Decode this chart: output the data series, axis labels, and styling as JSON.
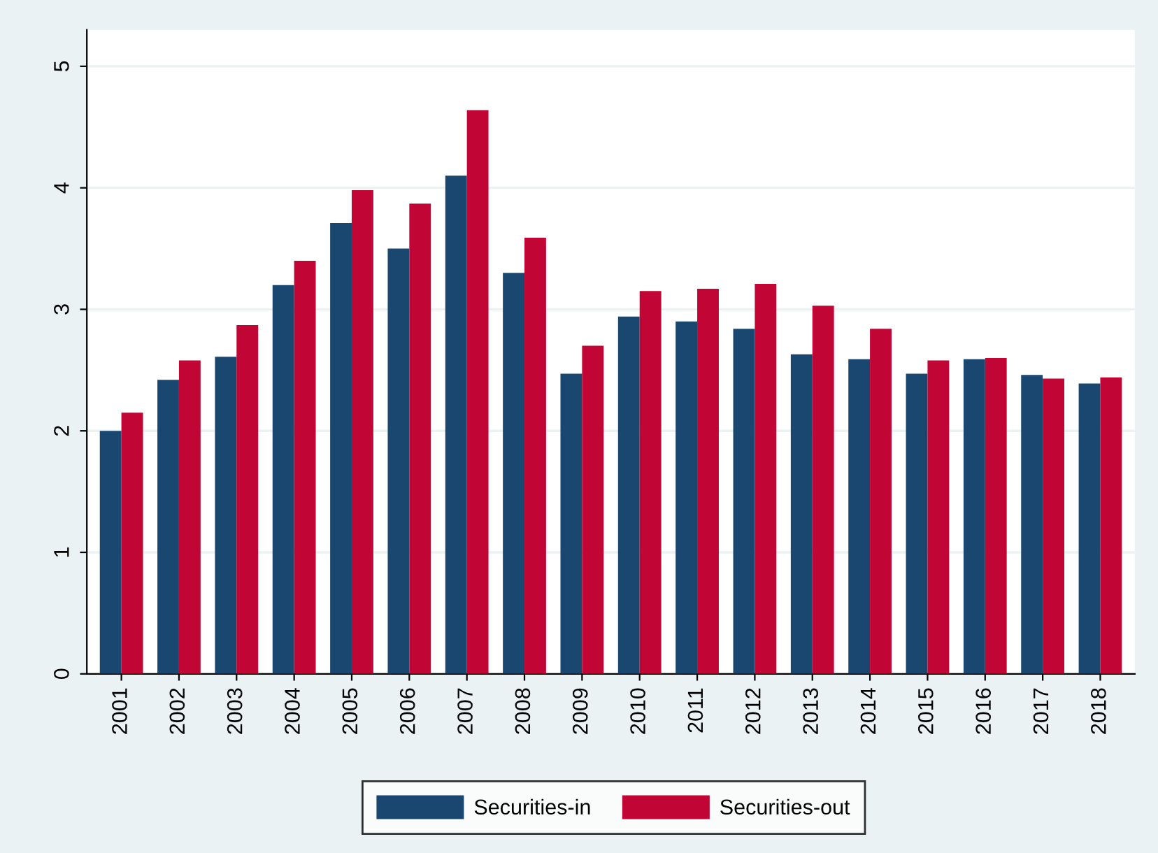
{
  "chart_data": {
    "type": "bar",
    "categories": [
      "2001",
      "2002",
      "2003",
      "2004",
      "2005",
      "2006",
      "2007",
      "2008",
      "2009",
      "2010",
      "2011",
      "2012",
      "2013",
      "2014",
      "2015",
      "2016",
      "2017",
      "2018"
    ],
    "series": [
      {
        "name": "Securities-in",
        "color": "#1a476f",
        "values": [
          2.0,
          2.42,
          2.61,
          3.2,
          3.71,
          3.5,
          4.1,
          3.3,
          2.47,
          2.94,
          2.9,
          2.84,
          2.63,
          2.59,
          2.47,
          2.59,
          2.46,
          2.39
        ]
      },
      {
        "name": "Securities-out",
        "color": "#c10534",
        "values": [
          2.15,
          2.58,
          2.87,
          3.4,
          3.98,
          3.87,
          4.64,
          3.59,
          2.7,
          3.15,
          3.17,
          3.21,
          3.03,
          2.84,
          2.58,
          2.6,
          2.43,
          2.44
        ]
      }
    ],
    "ylim": [
      0,
      5.3
    ],
    "yticks": [
      0,
      1,
      2,
      3,
      4,
      5
    ],
    "grid": "y",
    "legend": "bottom"
  }
}
